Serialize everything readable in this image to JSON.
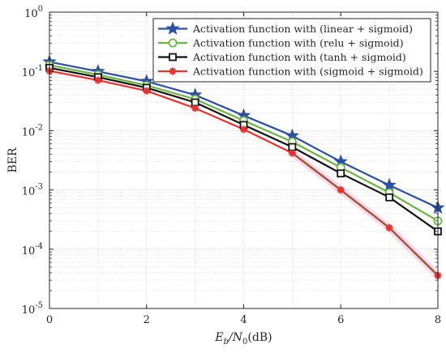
{
  "chart_data": {
    "type": "line",
    "xlabel": "E_b/N_0(dB)",
    "xlabel_parts": {
      "main": "E",
      "sub1": "b",
      "slash": "/N",
      "sub2": "0",
      "suffix": "(dB)"
    },
    "ylabel": "BER",
    "xlim": [
      0,
      8
    ],
    "ylim": [
      1e-05,
      1
    ],
    "yscale": "log",
    "grid": true,
    "legend_position": "top-right",
    "x_ticks": [
      "0",
      "2",
      "4",
      "6",
      "8"
    ],
    "y_ticks": [
      {
        "base": "10",
        "exp": "0"
      },
      {
        "base": "10",
        "exp": "-1"
      },
      {
        "base": "10",
        "exp": "-2"
      },
      {
        "base": "10",
        "exp": "-3"
      },
      {
        "base": "10",
        "exp": "-4"
      },
      {
        "base": "10",
        "exp": "-5"
      }
    ],
    "x": [
      0,
      1,
      2,
      3,
      4,
      5,
      6,
      7,
      8
    ],
    "series": [
      {
        "name": "Activation function with (linear + sigmoid)",
        "color": "#2b4fa3",
        "marker": "star",
        "values": [
          0.145,
          0.1,
          0.068,
          0.04,
          0.018,
          0.0082,
          0.003,
          0.0012,
          0.0005
        ]
      },
      {
        "name": "Activation function with (relu + sigmoid)",
        "color": "#6db33f",
        "marker": "circle",
        "values": [
          0.128,
          0.088,
          0.058,
          0.034,
          0.0148,
          0.0065,
          0.0024,
          0.0009,
          0.0003
        ]
      },
      {
        "name": "Activation function with (tanh + sigmoid)",
        "color": "#111111",
        "marker": "square",
        "values": [
          0.115,
          0.08,
          0.053,
          0.03,
          0.0125,
          0.0053,
          0.0019,
          0.00075,
          0.0002
        ]
      },
      {
        "name": "Activation function with (sigmoid + sigmoid)",
        "color": "#e8312f",
        "marker": "asterisk",
        "values": [
          0.102,
          0.071,
          0.047,
          0.024,
          0.0105,
          0.0042,
          0.001,
          0.00023,
          3.6e-05
        ]
      }
    ],
    "overlay_segment": {
      "color": "#9b5a2a",
      "highlight": "#f4b6e6",
      "x": [
        5,
        6,
        7,
        8
      ],
      "values": [
        0.0042,
        0.001,
        0.00023,
        3.6e-05
      ]
    }
  }
}
